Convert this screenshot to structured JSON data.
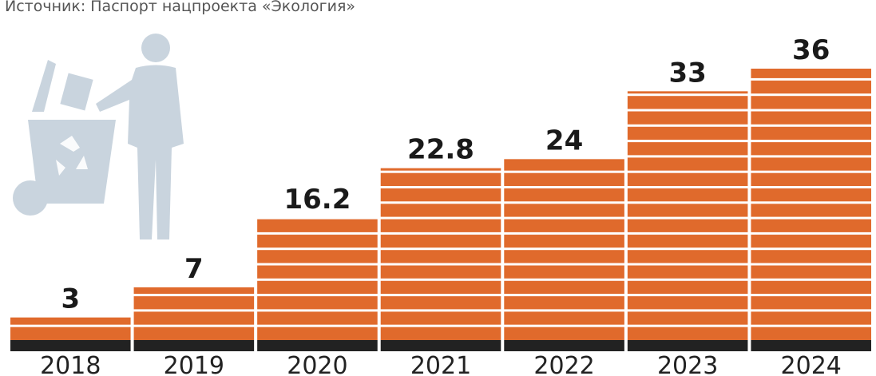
{
  "chart_data": {
    "type": "bar",
    "title": "Источник: Паспорт нацпроекта «Экология»",
    "categories": [
      "2018",
      "2019",
      "2020",
      "2021",
      "2022",
      "2023",
      "2024"
    ],
    "values": [
      3,
      7,
      16.2,
      22.8,
      24,
      33,
      36
    ],
    "color": "#e06a2c"
  }
}
